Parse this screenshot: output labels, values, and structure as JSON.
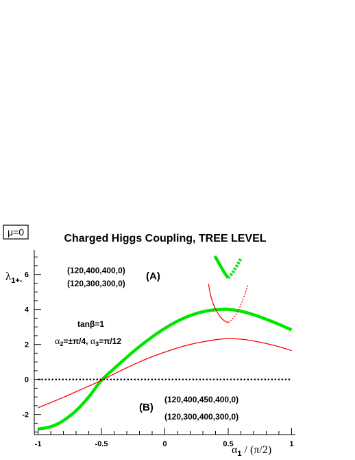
{
  "chart_data": {
    "type": "line",
    "title": "Charged Higgs Coupling, TREE LEVEL",
    "tag": "μ=0",
    "xlabel": {
      "main": "α",
      "sub": "1",
      "rest": " / (π/2)"
    },
    "ylabel": {
      "main": "λ",
      "sub": "1+-"
    },
    "xlim": [
      -1.03,
      1.03
    ],
    "ylim": [
      -3.15,
      7.4
    ],
    "xticks": [
      -1,
      -0.5,
      0,
      0.5,
      1
    ],
    "xticklabels": [
      "-1",
      "-0.5",
      "0",
      "0.5",
      "1"
    ],
    "yticks": [
      -2,
      0,
      2,
      4,
      6
    ],
    "yticklabels": [
      "-2",
      "0",
      "2",
      "4",
      "6"
    ],
    "grid": false,
    "annotations": {
      "label_A": "(A)",
      "label_B": "(B)",
      "A_set1": "(120,400,400,0)",
      "A_set2": "(120,300,300,0)",
      "B_set1": "(120,400,450,400,0)",
      "B_set2": "(120,300,400,300,0)",
      "tanb": "tanβ=1",
      "alphas": {
        "a2": "α",
        "a2sub": "2",
        "a2val": "=±π/4, ",
        "a3": "α",
        "a3sub": "3",
        "a3val": "=π/12"
      }
    },
    "series": [
      {
        "color": "#00e600",
        "style": "thick-solid",
        "x": [
          -1,
          -0.9,
          -0.8,
          -0.7,
          -0.6,
          -0.5,
          -0.4,
          -0.3,
          -0.2,
          -0.1,
          0,
          0.1,
          0.2,
          0.3,
          0.4,
          0.5,
          0.6,
          0.7,
          0.8,
          0.9,
          1
        ],
        "y": [
          -2.83,
          -2.7,
          -2.35,
          -1.78,
          -1.0,
          -0.05,
          0.62,
          1.27,
          1.88,
          2.43,
          2.92,
          3.33,
          3.65,
          3.87,
          3.98,
          4.0,
          3.9,
          3.7,
          3.44,
          3.15,
          2.83
        ]
      },
      {
        "color": "#ff0000",
        "style": "thin-solid",
        "x": [
          -1,
          -0.9,
          -0.8,
          -0.7,
          -0.6,
          -0.5,
          -0.4,
          -0.3,
          -0.2,
          -0.1,
          0,
          0.1,
          0.2,
          0.3,
          0.4,
          0.5,
          0.6,
          0.7,
          0.8,
          0.9,
          1
        ],
        "y": [
          -1.62,
          -1.32,
          -1.02,
          -0.7,
          -0.38,
          -0.05,
          0.32,
          0.67,
          1.0,
          1.3,
          1.56,
          1.8,
          2.0,
          2.15,
          2.27,
          2.33,
          2.3,
          2.2,
          2.05,
          1.87,
          1.65
        ]
      },
      {
        "color": "#00e600",
        "style": "thick-solid",
        "x": [
          0.395,
          0.43,
          0.47,
          0.5
        ],
        "y": [
          7.05,
          6.6,
          6.1,
          5.8
        ]
      },
      {
        "color": "#00e600",
        "style": "thick-dotted",
        "x": [
          0.5,
          0.53,
          0.56,
          0.6
        ],
        "y": [
          5.8,
          6.05,
          6.4,
          6.9
        ]
      },
      {
        "color": "#ff0000",
        "style": "thin-solid",
        "x": [
          0.345,
          0.36,
          0.38,
          0.41,
          0.44,
          0.47,
          0.5
        ],
        "y": [
          5.45,
          4.85,
          4.35,
          3.88,
          3.55,
          3.35,
          3.25
        ]
      },
      {
        "color": "#ff0000",
        "style": "thin-dotted",
        "x": [
          0.5,
          0.54,
          0.58,
          0.61,
          0.635,
          0.655
        ],
        "y": [
          3.25,
          3.5,
          3.95,
          4.45,
          4.95,
          5.4
        ]
      },
      {
        "color": "#000000",
        "style": "dotted",
        "x": [
          -1,
          1
        ],
        "y": [
          0,
          0
        ]
      }
    ]
  }
}
